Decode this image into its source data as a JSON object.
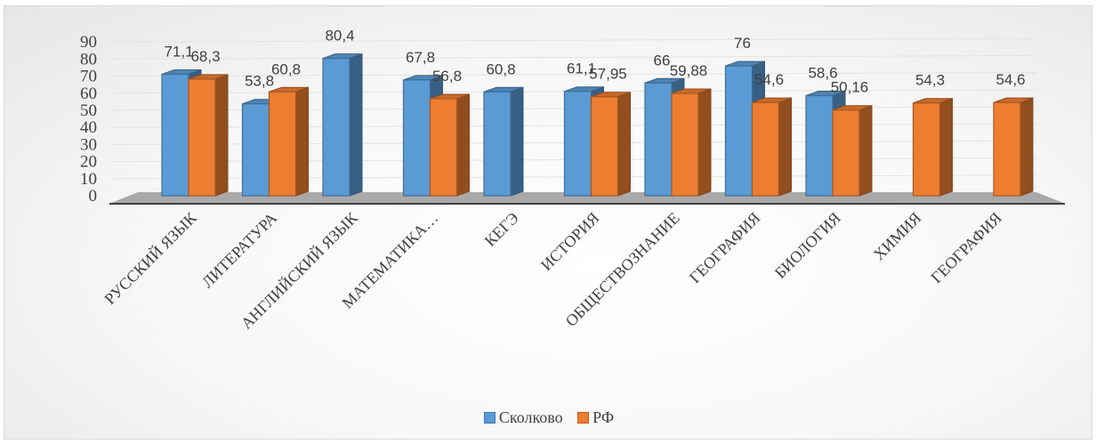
{
  "chart_data": {
    "type": "bar",
    "categories": [
      "РУССКИЙ ЯЗЫК",
      "ЛИТЕРАТУРА",
      "АНГЛИЙСКИЙ ЯЗЫК",
      "МАТЕМАТИКА…",
      "КЕГЭ",
      "ИСТОРИЯ",
      "ОБЩЕСТВОЗНАНИЕ",
      "ГЕОГРАФИЯ",
      "БИОЛОГИЯ",
      "ХИМИЯ",
      "ГЕОГРАФИЯ"
    ],
    "series": [
      {
        "name": "Сколково",
        "color": "#5b9bd5",
        "values": [
          71.1,
          53.8,
          80.4,
          67.8,
          60.8,
          61.1,
          66,
          76,
          58.6,
          null,
          null
        ],
        "labels": [
          "71,1",
          "53,8",
          "80,4",
          "67,8",
          "60,8",
          "61,1",
          "66",
          "76",
          "58,6",
          "",
          ""
        ]
      },
      {
        "name": "РФ",
        "color": "#ed7d31",
        "values": [
          68.3,
          60.8,
          null,
          56.8,
          null,
          57.95,
          59.88,
          54.6,
          50.16,
          54.3,
          54.6
        ],
        "labels": [
          "68,3",
          "60,8",
          "",
          "56,8",
          "",
          "57,95",
          "59,88",
          "54,6",
          "50,16",
          "54,3",
          "54,6"
        ]
      }
    ],
    "yticks": [
      "0",
      "10",
      "20",
      "30",
      "40",
      "50",
      "60",
      "70",
      "80",
      "90"
    ],
    "ylim": [
      0,
      90
    ],
    "grid": true,
    "legend_position": "bottom"
  },
  "legend": {
    "items": [
      "Сколково",
      "РФ"
    ]
  }
}
